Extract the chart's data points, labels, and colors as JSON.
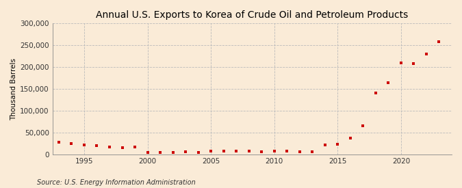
{
  "title": "Annual U.S. Exports to Korea of Crude Oil and Petroleum Products",
  "ylabel": "Thousand Barrels",
  "source": "Source: U.S. Energy Information Administration",
  "background_color": "#faebd7",
  "plot_background_color": "#faebd7",
  "marker_color": "#cc0000",
  "years": [
    1993,
    1994,
    1995,
    1996,
    1997,
    1998,
    1999,
    2000,
    2001,
    2002,
    2003,
    2004,
    2005,
    2006,
    2007,
    2008,
    2009,
    2010,
    2011,
    2012,
    2013,
    2014,
    2015,
    2016,
    2017,
    2018,
    2019,
    2020,
    2021,
    2022,
    2023
  ],
  "values": [
    28000,
    25000,
    22000,
    20000,
    17000,
    15000,
    17000,
    4000,
    4500,
    4000,
    6000,
    5000,
    7000,
    8000,
    7500,
    7000,
    6500,
    7500,
    7000,
    6500,
    6000,
    22000,
    24000,
    38000,
    65000,
    140000,
    165000,
    210000,
    208000,
    230000,
    258000
  ],
  "ylim": [
    0,
    300000
  ],
  "yticks": [
    0,
    50000,
    100000,
    150000,
    200000,
    250000,
    300000
  ],
  "ytick_labels": [
    "0",
    "50,000",
    "100,000",
    "150,000",
    "200,000",
    "250,000",
    "300,000"
  ],
  "xlim": [
    1992.5,
    2024
  ],
  "xticks": [
    1995,
    2000,
    2005,
    2010,
    2015,
    2020
  ],
  "grid_color": "#bbbbbb",
  "title_fontsize": 10,
  "axis_fontsize": 7.5,
  "source_fontsize": 7
}
